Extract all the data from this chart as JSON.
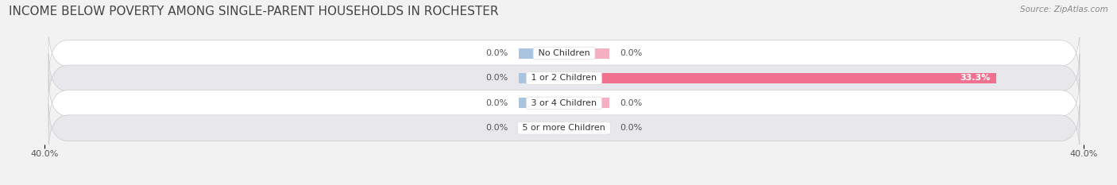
{
  "title": "INCOME BELOW POVERTY AMONG SINGLE-PARENT HOUSEHOLDS IN ROCHESTER",
  "source": "Source: ZipAtlas.com",
  "categories": [
    "No Children",
    "1 or 2 Children",
    "3 or 4 Children",
    "5 or more Children"
  ],
  "single_father": [
    0.0,
    0.0,
    0.0,
    0.0
  ],
  "single_mother": [
    0.0,
    33.3,
    0.0,
    0.0
  ],
  "father_color": "#a8c4e0",
  "mother_color": "#f07090",
  "mother_color_light": "#f4afc0",
  "axis_max": 40.0,
  "axis_min": -40.0,
  "bg_color": "#f2f2f2",
  "row_color_odd": "#ffffff",
  "row_color_even": "#e8e8ec",
  "title_fontsize": 11,
  "source_fontsize": 7.5,
  "label_fontsize": 8,
  "category_fontsize": 8,
  "stub_size": 3.5
}
